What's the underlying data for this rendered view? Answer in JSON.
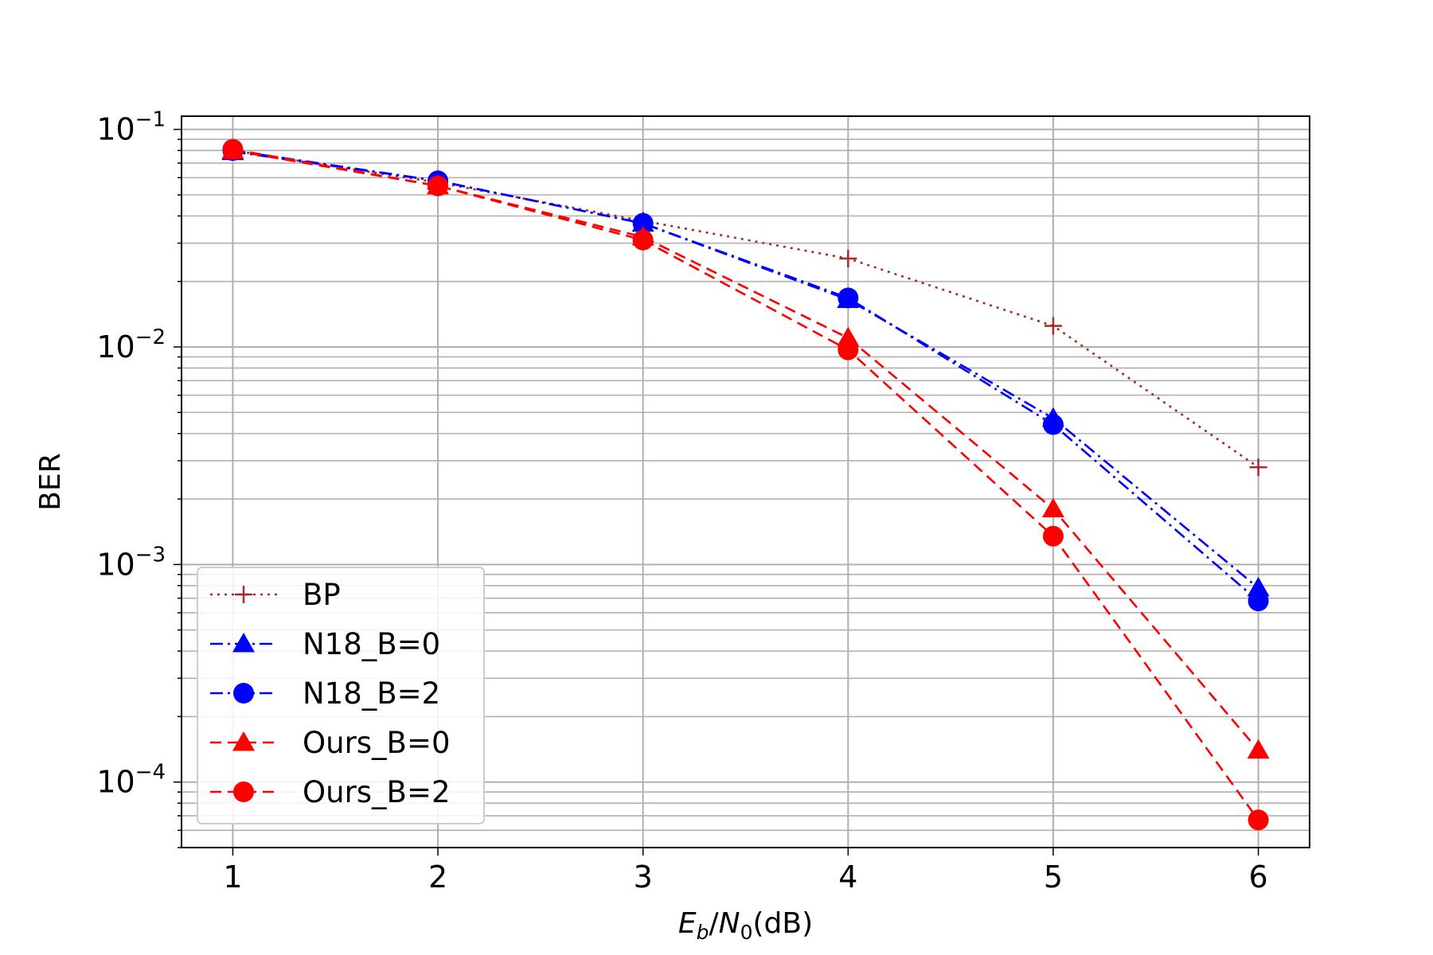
{
  "chart_data": {
    "type": "line",
    "title": "",
    "xlabel": {
      "prefix_E": "E",
      "sub_b": "b",
      "slash": "/",
      "prefix_N": "N",
      "sub_0": "0",
      "suffix": "(dB)"
    },
    "ylabel": "BER",
    "x": [
      1,
      2,
      3,
      4,
      5,
      6
    ],
    "xlim": [
      0.75,
      6.25
    ],
    "ylim": [
      5e-05,
      0.115
    ],
    "yscale": "log",
    "grid": true,
    "grid_minor": true,
    "legend_placement": "lower-left",
    "x_ticks": [
      "1",
      "2",
      "3",
      "4",
      "5",
      "6"
    ],
    "y_ticks": [
      {
        "base": "10",
        "exp": "−1",
        "value": 0.1
      },
      {
        "base": "10",
        "exp": "−2",
        "value": 0.01
      },
      {
        "base": "10",
        "exp": "−3",
        "value": 0.001
      },
      {
        "base": "10",
        "exp": "−4",
        "value": 0.0001
      }
    ],
    "series": [
      {
        "name": "BP",
        "color": "#a52a2a",
        "dash": "dotted",
        "marker": "plus",
        "values": [
          0.08,
          0.057,
          0.038,
          0.0255,
          0.0125,
          0.0028
        ]
      },
      {
        "name": "N18_B=0",
        "color": "#0000ff",
        "dash": "dashdot",
        "marker": "triangle",
        "values": [
          0.079,
          0.058,
          0.037,
          0.0165,
          0.0047,
          0.00078
        ]
      },
      {
        "name": "N18_B=2",
        "color": "#0000ff",
        "dash": "dashdot",
        "marker": "circle",
        "values": [
          0.08,
          0.058,
          0.037,
          0.0168,
          0.0044,
          0.00068
        ]
      },
      {
        "name": "Ours_B=0",
        "color": "#ff0000",
        "dash": "dashed",
        "marker": "triangle",
        "values": [
          0.08,
          0.055,
          0.032,
          0.011,
          0.0018,
          0.00014
        ]
      },
      {
        "name": "Ours_B=2",
        "color": "#ff0000",
        "dash": "dashed",
        "marker": "circle",
        "values": [
          0.081,
          0.055,
          0.031,
          0.0097,
          0.00135,
          6.7e-05
        ]
      }
    ]
  }
}
